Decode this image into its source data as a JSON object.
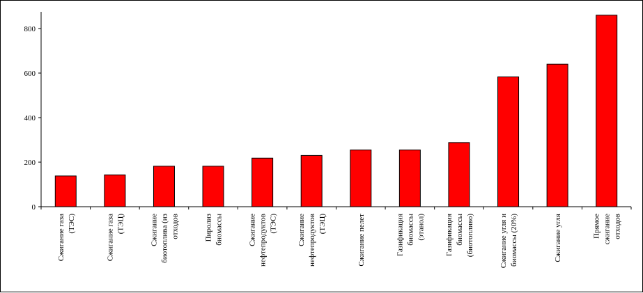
{
  "chart_data": {
    "type": "bar",
    "title": "",
    "xlabel": "",
    "ylabel": "",
    "ylim": [
      0,
      900
    ],
    "y_ticks": [
      "0",
      "200",
      "400",
      "600",
      "800"
    ],
    "grid": false,
    "legend": "none",
    "bar_color": "#ff0000",
    "bar_edge_color": "#000000",
    "categories": [
      [
        "Сжигание газа",
        "(ТЭС)"
      ],
      [
        "Сжигание газа",
        "(ТЭЦ)"
      ],
      [
        "Сжигание",
        "биотоплива (из",
        "отходов"
      ],
      [
        "Пиролиз",
        "биомассы"
      ],
      [
        "Сжигание",
        "нефтепродуктов",
        "(ТЭС)"
      ],
      [
        "Сжигание",
        "нефтепродуктов",
        "(ТЭЦ)"
      ],
      [
        "Сжигание пелет"
      ],
      [
        "Газификация",
        "биомассы",
        "(этанол)"
      ],
      [
        "Газификация",
        "биомассы",
        "(биотопливо)"
      ],
      [
        "Сжигание угля и",
        "биомассы (20%)"
      ],
      [
        "Сжигание угля"
      ],
      [
        "Прямое",
        "сжигание",
        "отходов"
      ]
    ],
    "values": [
      138,
      143,
      182,
      182,
      218,
      230,
      255,
      255,
      288,
      583,
      640,
      860
    ]
  }
}
